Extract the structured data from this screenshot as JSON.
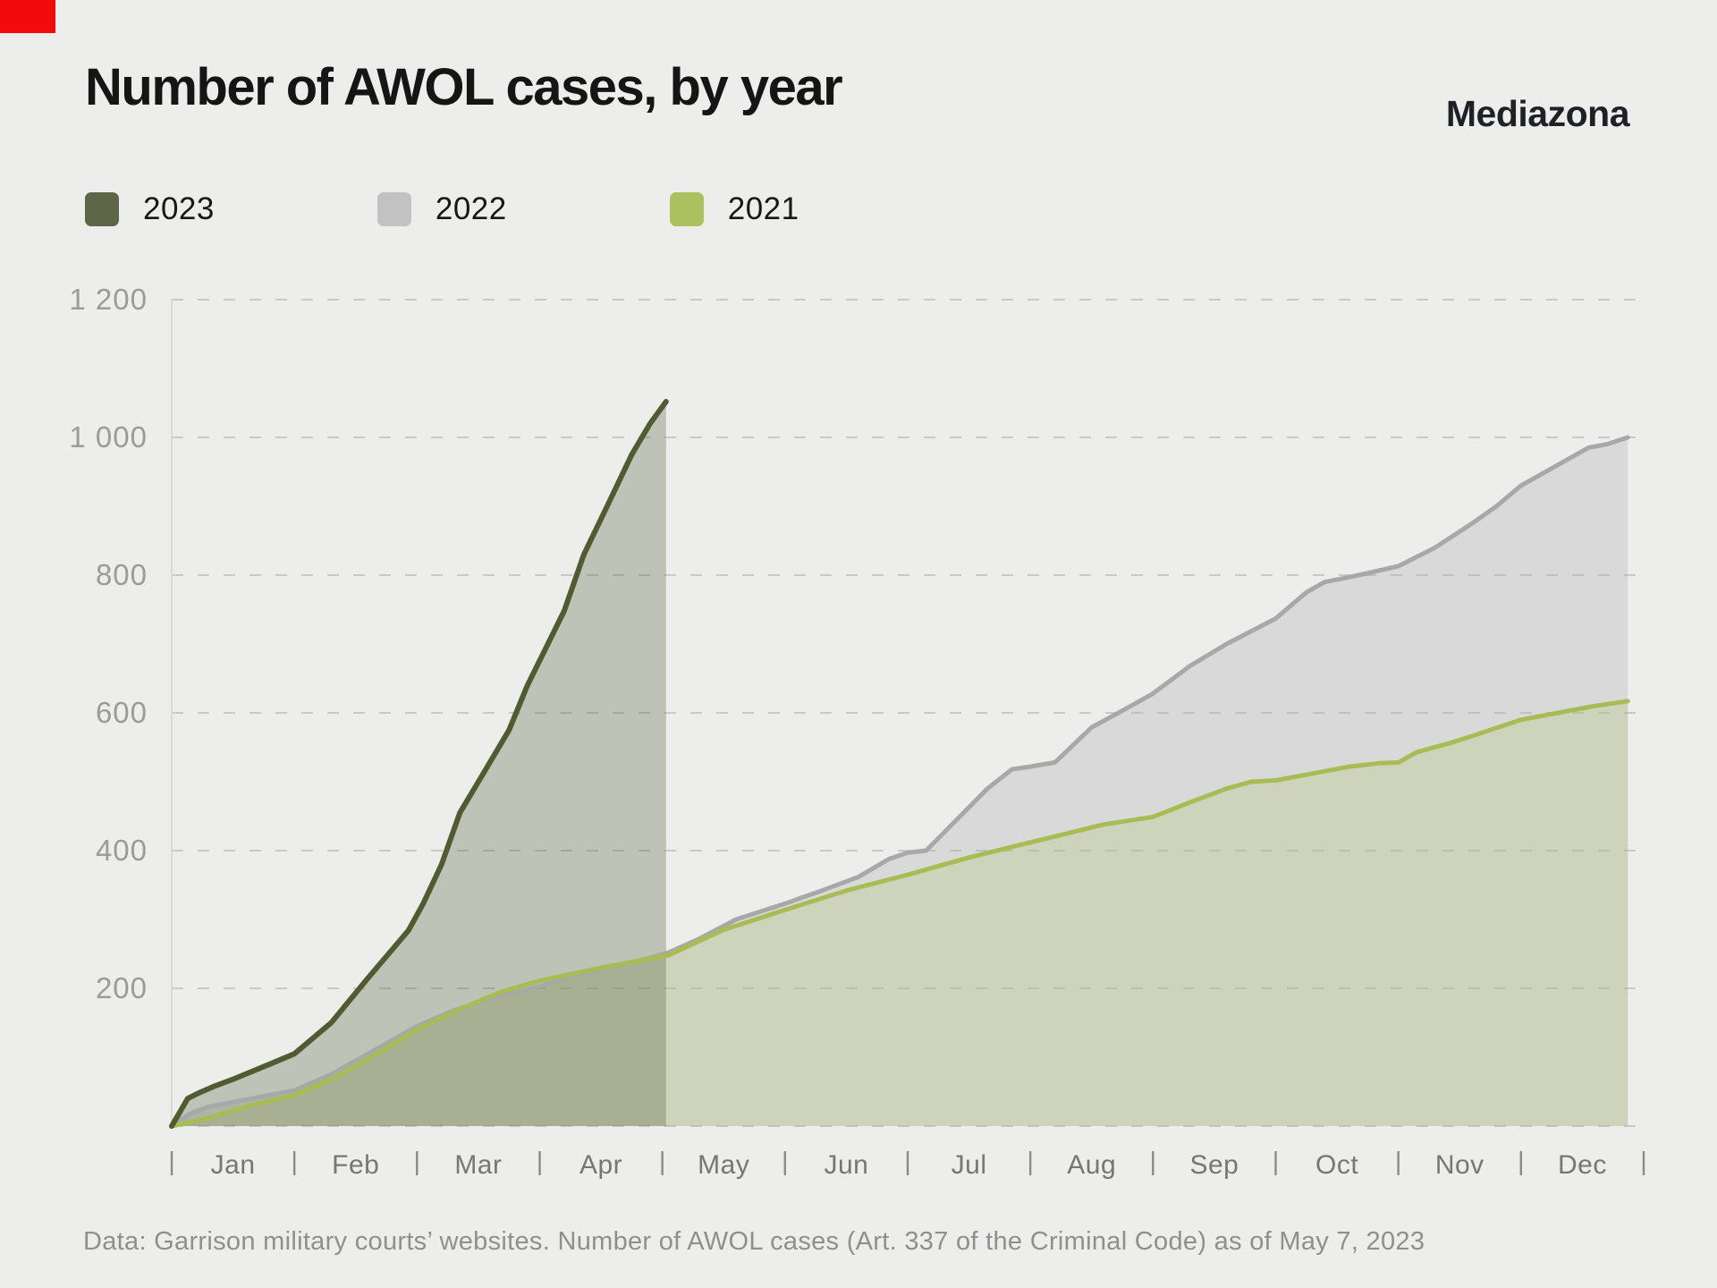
{
  "marker": {
    "color": "#f20b0b"
  },
  "header": {
    "title": "Number of AWOL cases, by year",
    "brand": "Mediazona"
  },
  "legend": [
    {
      "label": "2023",
      "color": "#5d6747"
    },
    {
      "label": "2022",
      "color": "#c2c2c2"
    },
    {
      "label": "2021",
      "color": "#abc05e"
    }
  ],
  "footer": {
    "text": "Data: Garrison military courts’ websites. Number of AWOL cases (Art. 337 of the Criminal Code) as of May 7, 2023"
  },
  "chart_data": {
    "type": "area",
    "title": "Number of AWOL cases, by year",
    "xlabel": "",
    "ylabel": "",
    "ylim": [
      0,
      1200
    ],
    "grid": "dashed horizontal gridlines",
    "legend_position": "top-left",
    "x_months": [
      "Jan",
      "Feb",
      "Mar",
      "Apr",
      "May",
      "Jun",
      "Jul",
      "Aug",
      "Sep",
      "Oct",
      "Nov",
      "Dec"
    ],
    "y_ticks": [
      {
        "value": 1200,
        "label": "1 200"
      },
      {
        "value": 1000,
        "label": "1 000"
      },
      {
        "value": 800,
        "label": "800"
      },
      {
        "value": 600,
        "label": "600"
      },
      {
        "value": 400,
        "label": "400"
      },
      {
        "value": 200,
        "label": "200"
      }
    ],
    "x_axis_note": "x expressed in fractional months from Jan 1 (0) to Dec 31 (12)",
    "series": [
      {
        "name": "2022",
        "line_color": "#a8a8a8",
        "fill_color": "rgba(172,172,172,0.30)",
        "line_width": 5,
        "points": [
          [
            0,
            0
          ],
          [
            0.15,
            18
          ],
          [
            0.3,
            28
          ],
          [
            0.5,
            35
          ],
          [
            0.8,
            45
          ],
          [
            1,
            52
          ],
          [
            1.3,
            75
          ],
          [
            1.6,
            105
          ],
          [
            2,
            145
          ],
          [
            2.3,
            168
          ],
          [
            2.6,
            185
          ],
          [
            3,
            203
          ],
          [
            3.3,
            220
          ],
          [
            3.6,
            232
          ],
          [
            3.85,
            242
          ],
          [
            4.05,
            252
          ],
          [
            4.3,
            272
          ],
          [
            4.6,
            300
          ],
          [
            5,
            323
          ],
          [
            5.3,
            342
          ],
          [
            5.6,
            362
          ],
          [
            5.85,
            388
          ],
          [
            6,
            397
          ],
          [
            6.15,
            400
          ],
          [
            6.4,
            445
          ],
          [
            6.65,
            490
          ],
          [
            6.85,
            518
          ],
          [
            7,
            522
          ],
          [
            7.2,
            528
          ],
          [
            7.5,
            579
          ],
          [
            7.8,
            608
          ],
          [
            8,
            628
          ],
          [
            8.3,
            668
          ],
          [
            8.6,
            700
          ],
          [
            9,
            737
          ],
          [
            9.25,
            775
          ],
          [
            9.4,
            790
          ],
          [
            9.6,
            797
          ],
          [
            10,
            813
          ],
          [
            10.3,
            840
          ],
          [
            10.6,
            875
          ],
          [
            10.8,
            900
          ],
          [
            11,
            930
          ],
          [
            11.3,
            960
          ],
          [
            11.55,
            985
          ],
          [
            11.7,
            990
          ],
          [
            11.87,
            1000
          ]
        ]
      },
      {
        "name": "2021",
        "line_color": "#a7bd54",
        "fill_color": "rgba(168,190,88,0.22)",
        "line_width": 5,
        "points": [
          [
            0,
            0
          ],
          [
            0.3,
            12
          ],
          [
            0.6,
            28
          ],
          [
            1,
            45
          ],
          [
            1.35,
            72
          ],
          [
            1.7,
            108
          ],
          [
            2,
            140
          ],
          [
            2.35,
            170
          ],
          [
            2.7,
            196
          ],
          [
            3,
            211
          ],
          [
            3.5,
            230
          ],
          [
            4.05,
            248
          ],
          [
            4.5,
            285
          ],
          [
            5,
            314
          ],
          [
            5.5,
            342
          ],
          [
            6,
            365
          ],
          [
            6.5,
            390
          ],
          [
            7,
            412
          ],
          [
            7.3,
            425
          ],
          [
            7.6,
            438
          ],
          [
            8,
            449
          ],
          [
            8.3,
            470
          ],
          [
            8.6,
            490
          ],
          [
            8.8,
            500
          ],
          [
            9,
            502
          ],
          [
            9.3,
            512
          ],
          [
            9.6,
            522
          ],
          [
            9.85,
            527
          ],
          [
            10,
            528
          ],
          [
            10.15,
            543
          ],
          [
            10.4,
            555
          ],
          [
            10.63,
            568
          ],
          [
            11,
            590
          ],
          [
            11.3,
            600
          ],
          [
            11.6,
            610
          ],
          [
            11.87,
            617
          ]
        ]
      },
      {
        "name": "2023",
        "line_color": "#515b31",
        "fill_color": "rgba(73,84,44,0.28)",
        "line_width": 6,
        "points": [
          [
            0,
            0
          ],
          [
            0.13,
            40
          ],
          [
            0.22,
            48
          ],
          [
            0.35,
            58
          ],
          [
            0.5,
            68
          ],
          [
            0.8,
            90
          ],
          [
            1,
            105
          ],
          [
            1.3,
            150
          ],
          [
            1.6,
            215
          ],
          [
            1.93,
            284
          ],
          [
            2.05,
            323
          ],
          [
            2.2,
            380
          ],
          [
            2.35,
            455
          ],
          [
            2.55,
            515
          ],
          [
            2.75,
            575
          ],
          [
            2.9,
            640
          ],
          [
            3.02,
            683
          ],
          [
            3.2,
            748
          ],
          [
            3.36,
            830
          ],
          [
            3.55,
            900
          ],
          [
            3.75,
            975
          ],
          [
            3.9,
            1020
          ],
          [
            4.03,
            1052
          ]
        ]
      }
    ]
  }
}
